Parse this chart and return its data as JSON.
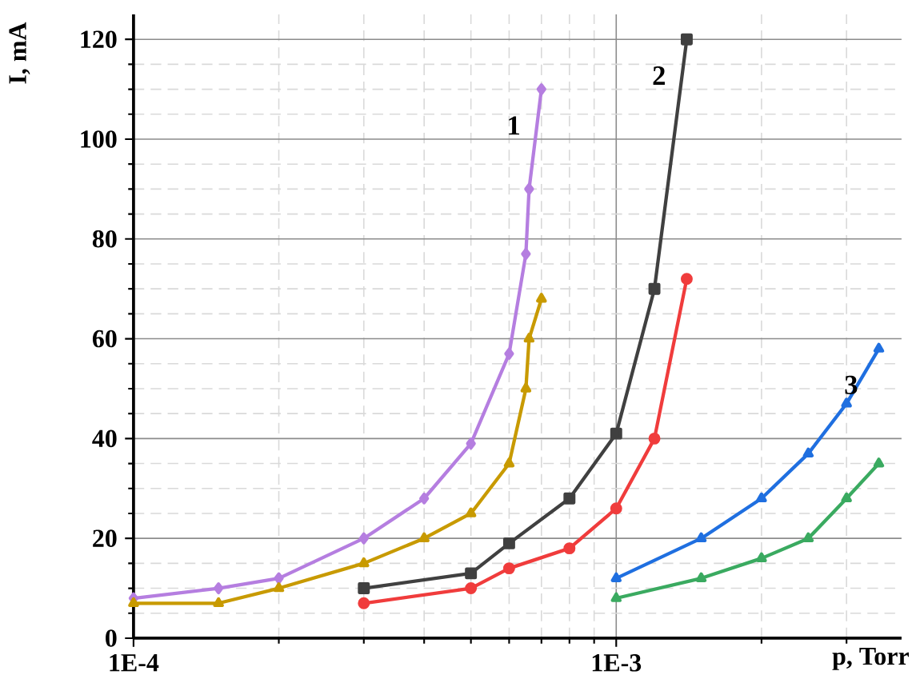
{
  "chart_data": {
    "type": "line",
    "xlabel": "p, Torr",
    "ylabel": "I, mA",
    "log": "x",
    "grid": true,
    "legend": false,
    "xlim": [
      0.0001,
      0.0039
    ],
    "ylim": [
      0,
      125
    ],
    "xticks": [
      {
        "value": 0.0001,
        "label": "1E-4"
      },
      {
        "value": 0.001,
        "label": "1E-3"
      }
    ],
    "yticks": [
      0,
      20,
      40,
      60,
      80,
      100,
      120
    ],
    "annotations": [
      "1",
      "2",
      "3"
    ],
    "series": [
      {
        "color": "#b57ee0",
        "marker": "diamond",
        "x": [
          0.0001,
          0.00015,
          0.0002,
          0.0003,
          0.0004,
          0.0005,
          0.0006,
          0.00065,
          0.00066,
          0.0007
        ],
        "values": [
          8,
          10,
          12,
          20,
          28,
          39,
          57,
          77,
          90,
          110
        ]
      },
      {
        "color": "#c89a00",
        "marker": "triangle",
        "x": [
          0.0001,
          0.00015,
          0.0002,
          0.0003,
          0.0004,
          0.0005,
          0.0006,
          0.00065,
          0.00066,
          0.0007
        ],
        "values": [
          7,
          7,
          10,
          15,
          20,
          25,
          35,
          50,
          60,
          68
        ]
      },
      {
        "color": "#404040",
        "marker": "square",
        "x": [
          0.0003,
          0.0005,
          0.0006,
          0.0008,
          0.001,
          0.0012,
          0.0014
        ],
        "values": [
          10,
          13,
          19,
          28,
          41,
          70,
          120
        ]
      },
      {
        "color": "#f03c3c",
        "marker": "circle",
        "x": [
          0.0003,
          0.0005,
          0.0006,
          0.0008,
          0.001,
          0.0012,
          0.0014
        ],
        "values": [
          7,
          10,
          14,
          18,
          26,
          40,
          72
        ]
      },
      {
        "color": "#1f6fe0",
        "marker": "triangle",
        "x": [
          0.001,
          0.0015,
          0.002,
          0.0025,
          0.003,
          0.0035
        ],
        "values": [
          12,
          20,
          28,
          37,
          47,
          58
        ]
      },
      {
        "color": "#3aaa60",
        "marker": "triangle",
        "x": [
          0.001,
          0.0015,
          0.002,
          0.0025,
          0.003,
          0.0035
        ],
        "values": [
          8,
          12,
          16,
          20,
          28,
          35
        ]
      }
    ]
  }
}
